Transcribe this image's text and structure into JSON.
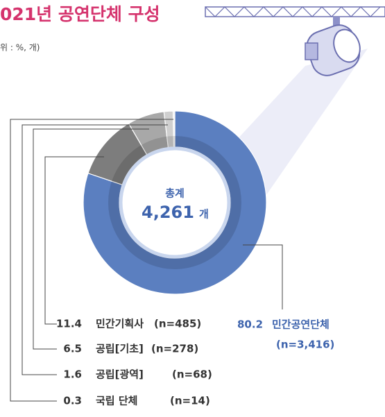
{
  "chart_data": {
    "type": "donut",
    "title": "021년 공연단체 구성",
    "subtitle": "위 : %, 개)",
    "center_title": "총계",
    "center_value": "4,261",
    "center_unit": "개",
    "categories": [
      "민간공연단체",
      "민간기획사",
      "공립[기초]",
      "공립[광역]",
      "국립 단체"
    ],
    "values": [
      80.2,
      11.4,
      6.5,
      1.6,
      0.3
    ],
    "count_labels": [
      "(n=3,416)",
      "(n=485)",
      "(n=278)",
      "(n=68)",
      "(n=14)"
    ],
    "colors": [
      "#5b7fc0",
      "#7d7d7d",
      "#a8a8a8",
      "#cfcfcf",
      "#ececec"
    ]
  }
}
